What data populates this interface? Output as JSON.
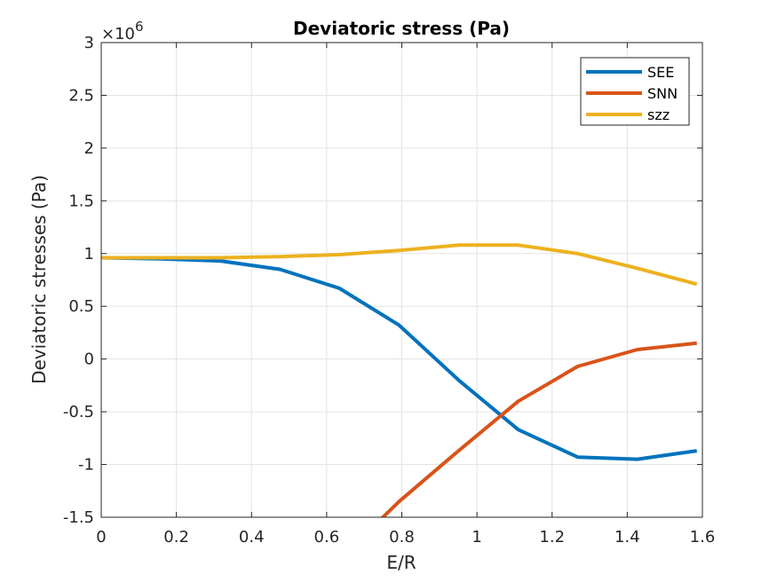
{
  "chart_data": {
    "type": "line",
    "title": "Deviatoric stress (Pa)",
    "xlabel": "E/R",
    "ylabel": "Deviatoric stresses (Pa)",
    "exponent_label": "×10",
    "exponent_power": "6",
    "xlim": [
      0,
      1.6
    ],
    "ylim": [
      -1.5,
      3
    ],
    "y_scale_factor": 1000000,
    "xticks": [
      0,
      0.2,
      0.4,
      0.6,
      0.8,
      1,
      1.2,
      1.4,
      1.6
    ],
    "xtick_labels": [
      "0",
      "0.2",
      "0.4",
      "0.6",
      "0.8",
      "1",
      "1.2",
      "1.4",
      "1.6"
    ],
    "yticks": [
      -1.5,
      -1,
      -0.5,
      0,
      0.5,
      1,
      1.5,
      2,
      2.5,
      3
    ],
    "ytick_labels": [
      "-1.5",
      "-1",
      "-0.5",
      "0",
      "0.5",
      "1",
      "1.5",
      "2",
      "2.5",
      "3"
    ],
    "grid": true,
    "legend_position": "top-right",
    "series": [
      {
        "name": "SEE",
        "color": "#0072BD",
        "x": [
          0,
          0.159,
          0.317,
          0.476,
          0.634,
          0.793,
          0.951,
          1.11,
          1.268,
          1.427,
          1.585
        ],
        "y": [
          0.96,
          0.95,
          0.93,
          0.85,
          0.67,
          0.32,
          -0.2,
          -0.67,
          -0.93,
          -0.95,
          -0.87
        ]
      },
      {
        "name": "SNN",
        "color": "#D95319",
        "x": [
          0.634,
          0.793,
          0.951,
          1.11,
          1.268,
          1.427,
          1.585
        ],
        "y": [
          -1.9,
          -1.35,
          -0.87,
          -0.4,
          -0.07,
          0.09,
          0.15
        ]
      },
      {
        "name": "szz",
        "color": "#EDB120",
        "x": [
          0,
          0.159,
          0.317,
          0.476,
          0.634,
          0.793,
          0.951,
          1.11,
          1.268,
          1.427,
          1.585
        ],
        "y": [
          0.96,
          0.96,
          0.96,
          0.97,
          0.99,
          1.03,
          1.08,
          1.08,
          1.0,
          0.86,
          0.71
        ]
      }
    ]
  }
}
